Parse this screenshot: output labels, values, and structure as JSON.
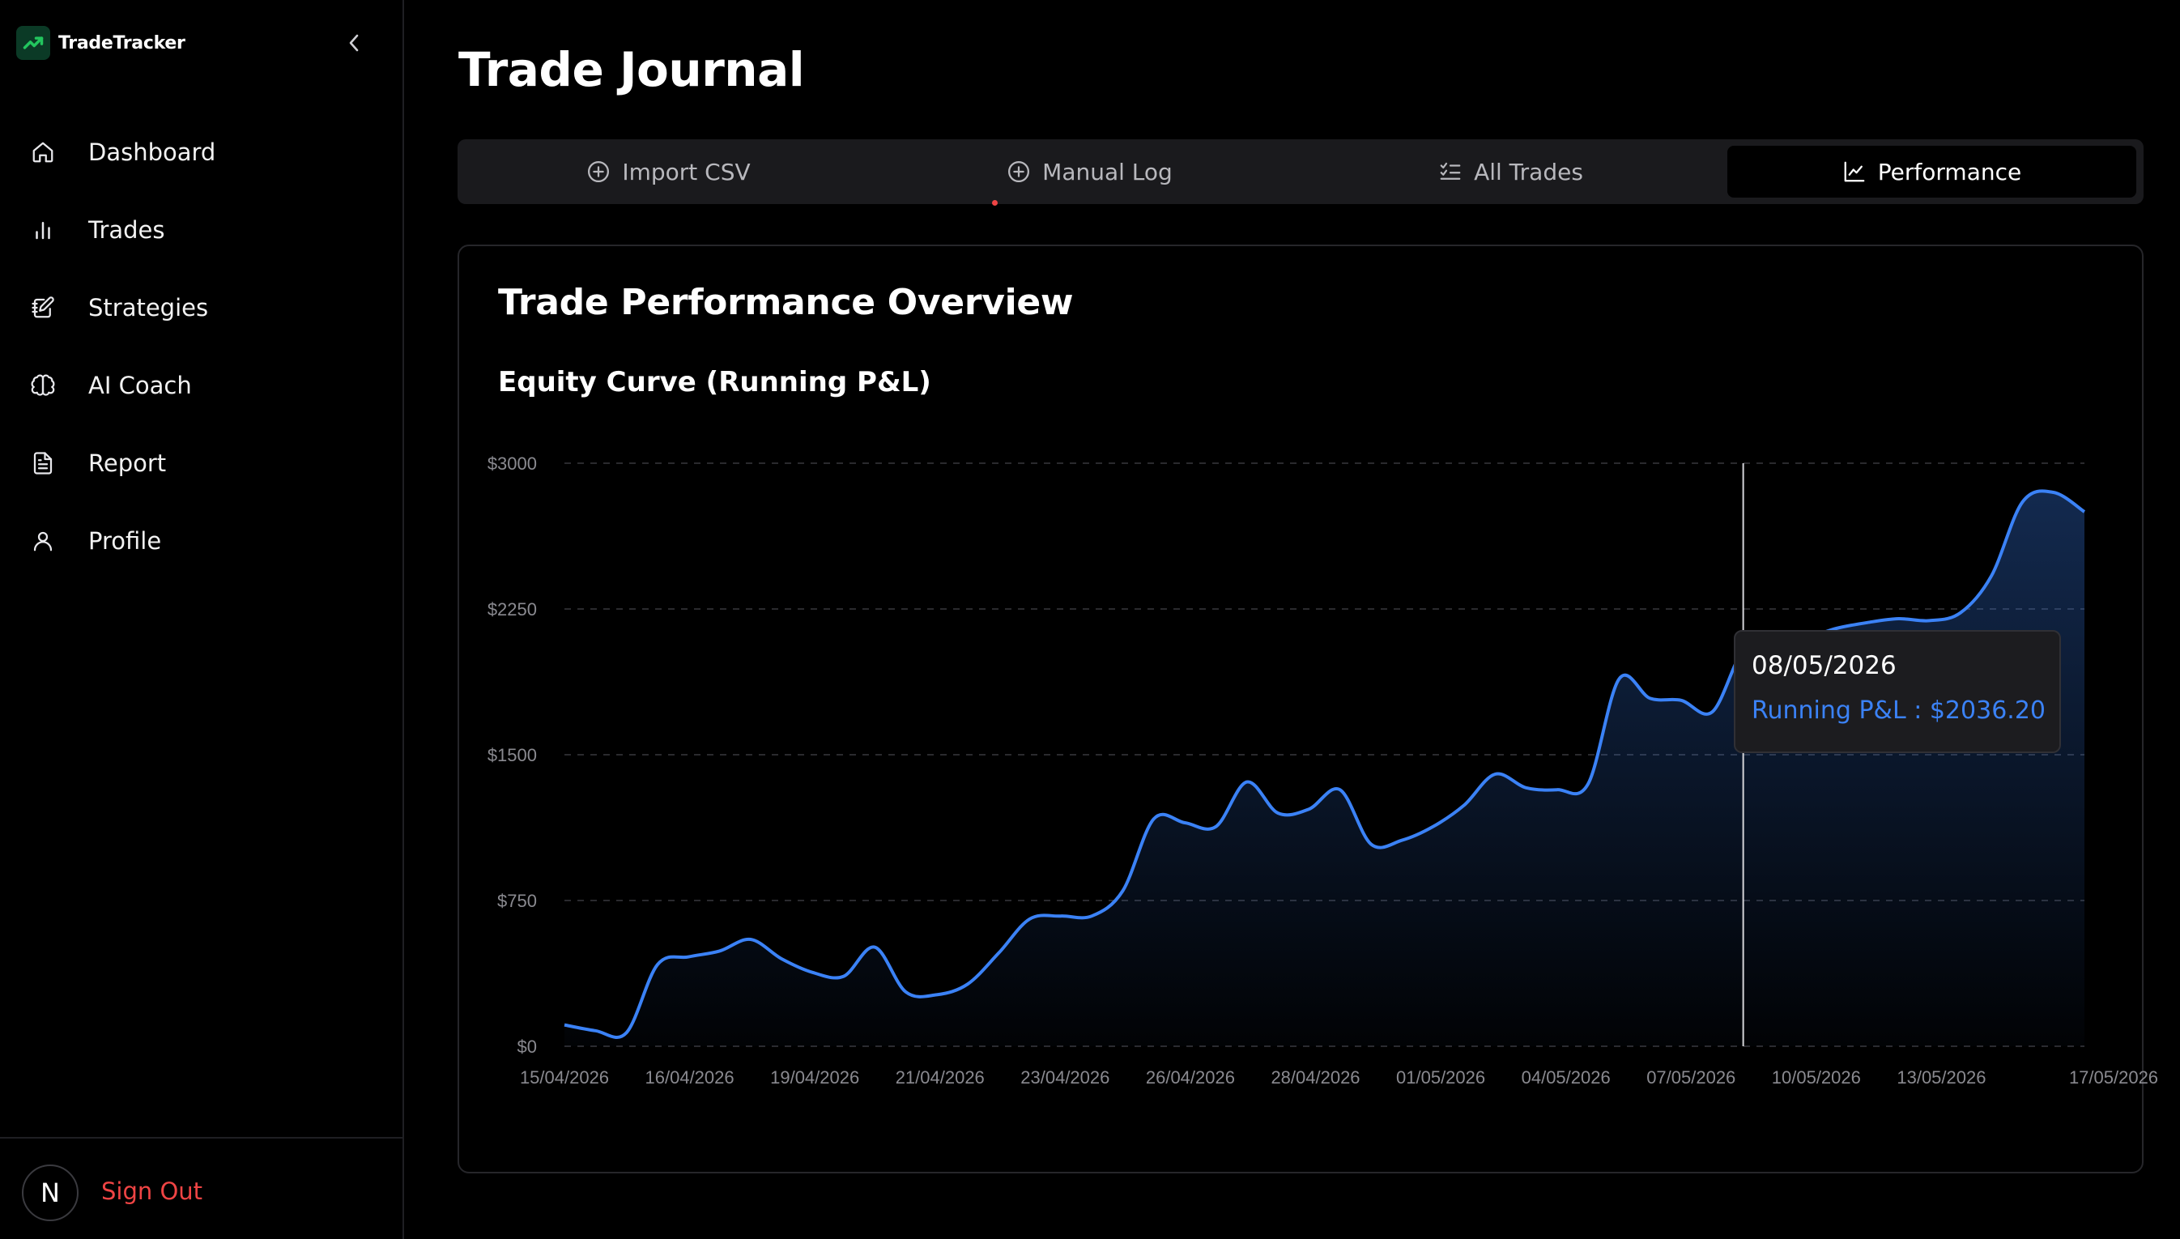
{
  "app": {
    "brand": "TradeTracker"
  },
  "sidebar": {
    "items": [
      {
        "label": "Dashboard",
        "icon": "home-icon"
      },
      {
        "label": "Trades",
        "icon": "bar-chart-icon"
      },
      {
        "label": "Strategies",
        "icon": "notebook-pen-icon"
      },
      {
        "label": "AI Coach",
        "icon": "brain-icon"
      },
      {
        "label": "Report",
        "icon": "file-text-icon"
      },
      {
        "label": "Profile",
        "icon": "user-icon"
      }
    ],
    "footer": {
      "avatar_initial": "N",
      "signout_label": "Sign Out"
    }
  },
  "page": {
    "title": "Trade Journal"
  },
  "tabs": [
    {
      "label": "Import CSV",
      "icon": "plus-circle-icon",
      "active": false
    },
    {
      "label": "Manual Log",
      "icon": "plus-circle-icon",
      "active": false
    },
    {
      "label": "All Trades",
      "icon": "list-checks-icon",
      "active": false
    },
    {
      "label": "Performance",
      "icon": "line-chart-icon",
      "active": true
    }
  ],
  "card": {
    "title": "Trade Performance Overview",
    "chart_title": "Equity Curve (Running P&L)"
  },
  "tooltip": {
    "date": "08/05/2026",
    "label": "Running P&L : $2036.20"
  },
  "colors": {
    "accent": "#3b82f6",
    "danger": "#ef4444",
    "brand_green": "#22c55e"
  },
  "chart_data": {
    "type": "area",
    "title": "Equity Curve (Running P&L)",
    "y_tick_labels": [
      "$0",
      "$750",
      "$1500",
      "$2250",
      "$3000"
    ],
    "y_tick_values": [
      0,
      750,
      1500,
      2250,
      3000
    ],
    "ylim": [
      0,
      3000
    ],
    "x_tick_labels": [
      "15/04/2026",
      "16/04/2026",
      "19/04/2026",
      "21/04/2026",
      "23/04/2026",
      "26/04/2026",
      "28/04/2026",
      "01/05/2026",
      "04/05/2026",
      "07/05/2026",
      "10/05/2026",
      "13/05/2026",
      "17/05/2026"
    ],
    "grid": true,
    "series": [
      {
        "values": [
          110,
          80,
          70,
          420,
          460,
          490,
          550,
          450,
          380,
          360,
          510,
          280,
          265,
          320,
          480,
          655,
          670,
          670,
          800,
          1170,
          1150,
          1130,
          1360,
          1200,
          1220,
          1320,
          1040,
          1060,
          1130,
          1240,
          1400,
          1330,
          1320,
          1350,
          1890,
          1790,
          1780,
          1720,
          2036.2,
          2090,
          2100,
          2150,
          2180,
          2200,
          2190,
          2230,
          2420,
          2800,
          2850,
          2750
        ]
      }
    ],
    "highlight": {
      "x": "08/05/2026",
      "y": 2036.2
    }
  }
}
